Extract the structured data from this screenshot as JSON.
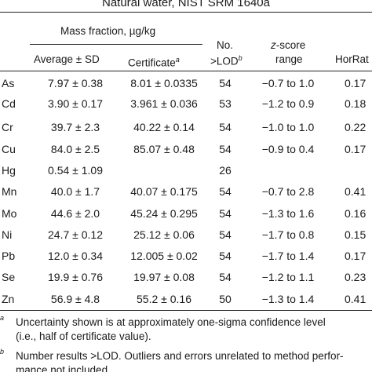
{
  "caption": "Natural water, NIST SRM 1640a",
  "header": {
    "mass_fraction": "Mass fraction, µg/kg",
    "average": "Average ± SD",
    "certificate": "Certificate",
    "certificate_note": "a",
    "no_line1": "No.",
    "no_line2": ">LOD",
    "no_note": "b",
    "zscore_italic": "z",
    "zscore_rest": "-score",
    "range": "range",
    "horrat": "HorRat"
  },
  "rows": [
    {
      "element": "As",
      "average": "7.97 ± 0.38",
      "certificate": "8.01 ± 0.0335",
      "n": "54",
      "z": "−0.7 to 1.0",
      "horrat": "0.17"
    },
    {
      "element": "Cd",
      "average": "3.90 ± 0.17",
      "certificate": "3.961 ± 0.036",
      "n": "53",
      "z": "−1.2 to 0.9",
      "horrat": "0.18"
    },
    {
      "element": "Cr",
      "average": "39.7 ± 2.3",
      "certificate": "40.22 ± 0.14",
      "n": "54",
      "z": "−1.0 to 1.0",
      "horrat": "0.22"
    },
    {
      "element": "Cu",
      "average": "84.0 ± 2.5",
      "certificate": "85.07 ± 0.48",
      "n": "54",
      "z": "−0.9 to 0.4",
      "horrat": "0.17"
    },
    {
      "element": "Hg",
      "average": "0.54 ± 1.09",
      "certificate": "",
      "n": "26",
      "z": "",
      "horrat": ""
    },
    {
      "element": "Mn",
      "average": "40.0 ± 1.7",
      "certificate": "40.07 ± 0.175",
      "n": "54",
      "z": "−0.7 to 2.8",
      "horrat": "0.41"
    },
    {
      "element": "Mo",
      "average": "44.6 ± 2.0",
      "certificate": "45.24 ± 0.295",
      "n": "54",
      "z": "−1.3 to 1.6",
      "horrat": "0.16"
    },
    {
      "element": "Ni",
      "average": "24.7 ± 0.12",
      "certificate": "25.12 ± 0.06",
      "n": "54",
      "z": "−1.7 to 0.8",
      "horrat": "0.15"
    },
    {
      "element": "Pb",
      "average": "12.0 ± 0.34",
      "certificate": "12.005 ± 0.02",
      "n": "54",
      "z": "−1.7 to 1.4",
      "horrat": "0.17"
    },
    {
      "element": "Se",
      "average": "19.9 ± 0.76",
      "certificate": "19.97 ± 0.08",
      "n": "54",
      "z": "−1.2 to 1.1",
      "horrat": "0.23"
    },
    {
      "element": "Zn",
      "average": "56.9 ± 4.8",
      "certificate": "55.2 ± 0.16",
      "n": "50",
      "z": "−1.3 to 1.4",
      "horrat": "0.41"
    }
  ],
  "footnotes": [
    {
      "mark": "a",
      "lines": [
        "Uncertainty shown is at approximately one-sigma confidence level",
        "(i.e., half of certificate value)."
      ]
    },
    {
      "mark": "b",
      "lines": [
        "Number results >LOD. Outliers and errors unrelated to method perfor-",
        "mance not included."
      ]
    }
  ]
}
